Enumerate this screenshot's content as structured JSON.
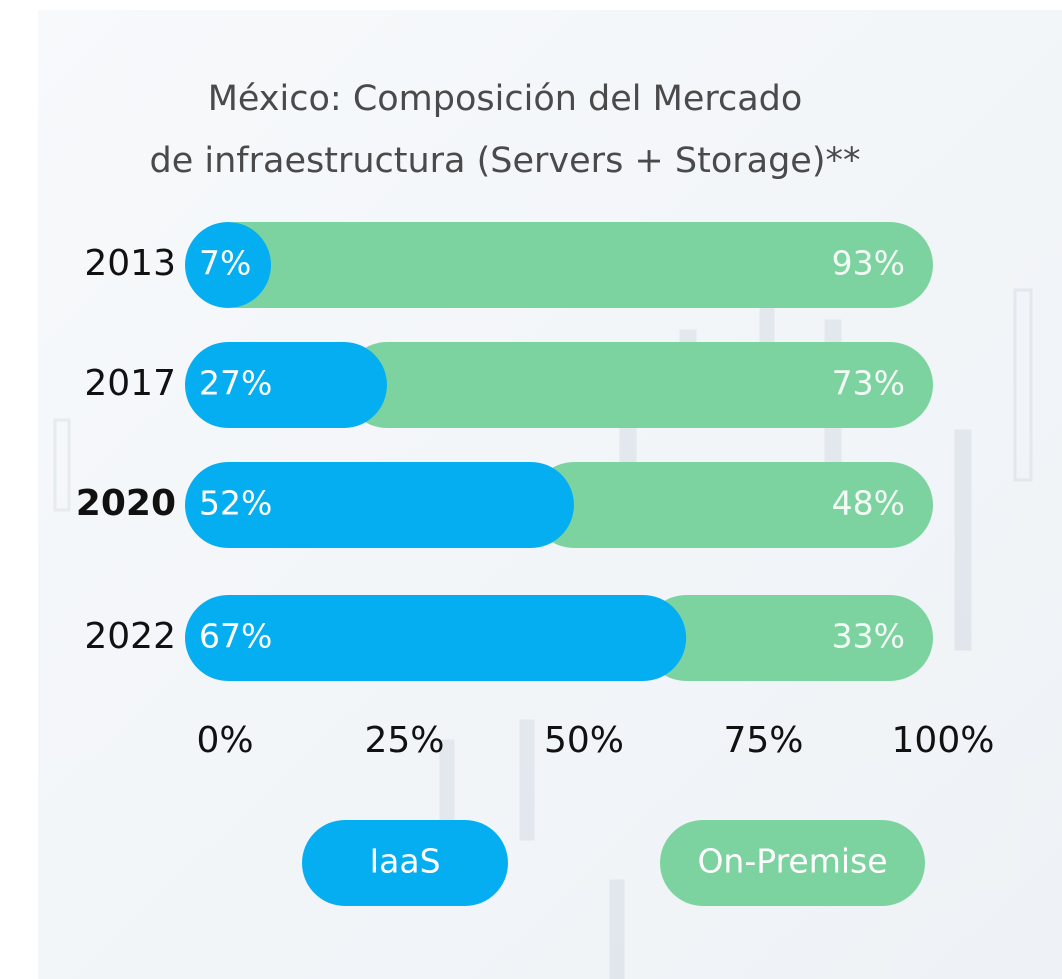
{
  "chart_data": {
    "type": "stacked_barh",
    "title": [
      "México: Composición del Mercado",
      "de infraestructura (Servers + Storage)**"
    ],
    "categories": [
      "2013",
      "2017",
      "2020",
      "2022"
    ],
    "highlight_category": "2020",
    "series": [
      {
        "name": "IaaS",
        "color": "#05aef0",
        "values": [
          7,
          27,
          52,
          67
        ],
        "value_labels": [
          "7%",
          "27%",
          "52%",
          "67%"
        ]
      },
      {
        "name": "On-Premise",
        "color": "#7dd3a0",
        "values": [
          93,
          73,
          48,
          33
        ],
        "value_labels": [
          "93%",
          "73%",
          "48%",
          "33%"
        ]
      }
    ],
    "xlim": [
      0,
      100
    ],
    "xticks": [
      {
        "value": 0,
        "label": "0%"
      },
      {
        "value": 25,
        "label": "25%"
      },
      {
        "value": 50,
        "label": "50%"
      },
      {
        "value": 75,
        "label": "75%"
      },
      {
        "value": 100,
        "label": "100%"
      }
    ],
    "legend": "bottom"
  }
}
